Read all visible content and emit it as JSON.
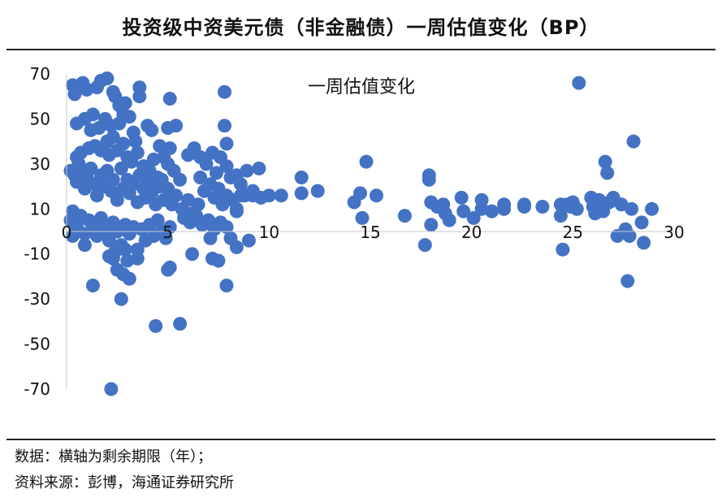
{
  "header": {
    "title": "投资级中资美元债（非金融债）一周估值变化（BP）"
  },
  "footer": {
    "note_line1": "数据：横轴为剩余期限（年）；",
    "note_line2": "资料来源：彭博，海通证券研究所"
  },
  "colors": {
    "marker": "#4472C4",
    "axis": "#c8c8c8",
    "text": "#111111"
  },
  "chart_data": {
    "type": "scatter",
    "title": "一周估值变化",
    "xlabel": "",
    "ylabel": "",
    "xlim": [
      0,
      30
    ],
    "ylim": [
      -70,
      70
    ],
    "x_ticks": [
      0,
      5,
      10,
      15,
      20,
      25,
      30
    ],
    "y_ticks": [
      70,
      50,
      30,
      10,
      -10,
      -30,
      -50,
      -70
    ],
    "grid": false,
    "legend": "none",
    "series": [
      {
        "points": [
          [
            0.3,
            65
          ],
          [
            0.4,
            61
          ],
          [
            0.8,
            66
          ],
          [
            1,
            63
          ],
          [
            1.5,
            64
          ],
          [
            1.7,
            67
          ],
          [
            2,
            68
          ],
          [
            2.3,
            62
          ],
          [
            2.4,
            60
          ],
          [
            2.6,
            56
          ],
          [
            2.9,
            57
          ],
          [
            3.6,
            64
          ],
          [
            3.6,
            60
          ],
          [
            5.1,
            59
          ],
          [
            7.8,
            62
          ],
          [
            7.8,
            47
          ],
          [
            7.9,
            39
          ],
          [
            0.5,
            48
          ],
          [
            0.9,
            50
          ],
          [
            1.2,
            45
          ],
          [
            1.3,
            52
          ],
          [
            1.6,
            46
          ],
          [
            1.9,
            50
          ],
          [
            2.2,
            47
          ],
          [
            2.6,
            48
          ],
          [
            2.8,
            52
          ],
          [
            3.1,
            51
          ],
          [
            3.3,
            44
          ],
          [
            3.4,
            40
          ],
          [
            4,
            47
          ],
          [
            4.2,
            45
          ],
          [
            4.6,
            38
          ],
          [
            5,
            46
          ],
          [
            5.4,
            47
          ],
          [
            5.1,
            37
          ],
          [
            4.8,
            33
          ],
          [
            0.5,
            33
          ],
          [
            0.7,
            35
          ],
          [
            1.1,
            37
          ],
          [
            1.4,
            38
          ],
          [
            1.7,
            36
          ],
          [
            2,
            40
          ],
          [
            2.1,
            34
          ],
          [
            2.3,
            42
          ],
          [
            2.5,
            36
          ],
          [
            2.8,
            39
          ],
          [
            3,
            33
          ],
          [
            3.2,
            31
          ],
          [
            3.5,
            35
          ],
          [
            3.8,
            29
          ],
          [
            4.1,
            27
          ],
          [
            4.3,
            32
          ],
          [
            4.5,
            24
          ],
          [
            4.7,
            23
          ],
          [
            5,
            30
          ],
          [
            5.3,
            27
          ],
          [
            5.6,
            23
          ],
          [
            0.2,
            27
          ],
          [
            0.4,
            25
          ],
          [
            0.5,
            22
          ],
          [
            0.6,
            30
          ],
          [
            0.8,
            27
          ],
          [
            0.9,
            19
          ],
          [
            1,
            24
          ],
          [
            1.2,
            28
          ],
          [
            1.4,
            21
          ],
          [
            1.5,
            16
          ],
          [
            1.7,
            25
          ],
          [
            1.8,
            20
          ],
          [
            2,
            27
          ],
          [
            2.2,
            18
          ],
          [
            2.3,
            23
          ],
          [
            2.5,
            14
          ],
          [
            2.7,
            28
          ],
          [
            2.8,
            19
          ],
          [
            3,
            23
          ],
          [
            3.1,
            17
          ],
          [
            3.3,
            21
          ],
          [
            3.5,
            13
          ],
          [
            3.6,
            25
          ],
          [
            3.8,
            19
          ],
          [
            3.9,
            15
          ],
          [
            4,
            22
          ],
          [
            4.2,
            17
          ],
          [
            4.4,
            12
          ],
          [
            4.6,
            20
          ],
          [
            4.8,
            14
          ],
          [
            5,
            19
          ],
          [
            5.2,
            12
          ],
          [
            5.4,
            16
          ],
          [
            5.7,
            10
          ],
          [
            6,
            14
          ],
          [
            6.2,
            8
          ],
          [
            6.5,
            12
          ],
          [
            6,
            34
          ],
          [
            6.3,
            37
          ],
          [
            6.6,
            33
          ],
          [
            6.9,
            30
          ],
          [
            7.2,
            35
          ],
          [
            7.4,
            26
          ],
          [
            7.6,
            33
          ],
          [
            7.9,
            29
          ],
          [
            8.1,
            24
          ],
          [
            8.4,
            25
          ],
          [
            8.6,
            21
          ],
          [
            8.9,
            27
          ],
          [
            9.2,
            18
          ],
          [
            9.5,
            28
          ],
          [
            6.6,
            24
          ],
          [
            6.8,
            18
          ],
          [
            7.1,
            21
          ],
          [
            7.3,
            15
          ],
          [
            7.5,
            19
          ],
          [
            7.7,
            12
          ],
          [
            7.9,
            16
          ],
          [
            8.2,
            14
          ],
          [
            8.4,
            10
          ],
          [
            8.6,
            16
          ],
          [
            8.8,
            16
          ],
          [
            9.2,
            16
          ],
          [
            9.6,
            15
          ],
          [
            5.8,
            6
          ],
          [
            6.1,
            4
          ],
          [
            6.4,
            7
          ],
          [
            6.7,
            3
          ],
          [
            7,
            5
          ],
          [
            7.3,
            1
          ],
          [
            7.6,
            4
          ],
          [
            7.9,
            2
          ],
          [
            8.1,
            -3
          ],
          [
            8.4,
            9
          ],
          [
            0.2,
            5
          ],
          [
            0.3,
            9
          ],
          [
            0.5,
            2
          ],
          [
            0.7,
            7
          ],
          [
            0.9,
            -1
          ],
          [
            1.1,
            5
          ],
          [
            1.3,
            3
          ],
          [
            1.5,
            -2
          ],
          [
            1.7,
            6
          ],
          [
            1.9,
            1
          ],
          [
            2.1,
            -4
          ],
          [
            2.3,
            4
          ],
          [
            2.5,
            0
          ],
          [
            2.7,
            -6
          ],
          [
            2.9,
            3
          ],
          [
            3.1,
            -1
          ],
          [
            3.3,
            2
          ],
          [
            3.5,
            -8
          ],
          [
            3.7,
            1
          ],
          [
            3.9,
            -4
          ],
          [
            4.1,
            3
          ],
          [
            4.3,
            -2
          ],
          [
            4.5,
            5
          ],
          [
            4.7,
            0
          ],
          [
            4.9,
            -3
          ],
          [
            5.1,
            2
          ],
          [
            0.3,
            -2
          ],
          [
            0.9,
            -6
          ],
          [
            1.3,
            -24
          ],
          [
            2.1,
            -11
          ],
          [
            2.3,
            -12
          ],
          [
            2.4,
            -9
          ],
          [
            2.5,
            -17
          ],
          [
            2.7,
            -30
          ],
          [
            2.8,
            -19
          ],
          [
            2.9,
            -8
          ],
          [
            3,
            -13
          ],
          [
            3.1,
            -21
          ],
          [
            3.5,
            -12
          ],
          [
            4.4,
            -42
          ],
          [
            5,
            -17
          ],
          [
            5.1,
            -16
          ],
          [
            5.6,
            -41
          ],
          [
            6.2,
            -10
          ],
          [
            7.1,
            -3
          ],
          [
            7.2,
            -12
          ],
          [
            7.5,
            -13
          ],
          [
            7.9,
            -24
          ],
          [
            8.4,
            -7
          ],
          [
            9,
            -4
          ],
          [
            2.2,
            -70
          ],
          [
            10,
            16
          ],
          [
            10.6,
            16
          ],
          [
            11.6,
            17
          ],
          [
            11.6,
            24
          ],
          [
            12.4,
            18
          ],
          [
            14.2,
            13
          ],
          [
            14.5,
            17
          ],
          [
            14.6,
            6
          ],
          [
            14.8,
            31
          ],
          [
            15.3,
            16
          ],
          [
            16.7,
            7
          ],
          [
            17.7,
            -6
          ],
          [
            17.9,
            25
          ],
          [
            17.9,
            23
          ],
          [
            18,
            3
          ],
          [
            18,
            13
          ],
          [
            18.3,
            11
          ],
          [
            18.6,
            12
          ],
          [
            18.7,
            8
          ],
          [
            18.9,
            5
          ],
          [
            19.5,
            15
          ],
          [
            19.6,
            9
          ],
          [
            20.1,
            6
          ],
          [
            20.5,
            14
          ],
          [
            20.5,
            10
          ],
          [
            21,
            9
          ],
          [
            21.6,
            12
          ],
          [
            21.6,
            10
          ],
          [
            22.6,
            12
          ],
          [
            22.6,
            11
          ],
          [
            23.5,
            11
          ],
          [
            24.4,
            12
          ],
          [
            24.4,
            7
          ],
          [
            24.5,
            -8
          ],
          [
            24.7,
            12
          ],
          [
            24.9,
            11
          ],
          [
            25,
            13
          ],
          [
            25.2,
            10
          ],
          [
            25.3,
            66
          ],
          [
            25.9,
            15
          ],
          [
            26,
            11
          ],
          [
            26.1,
            8
          ],
          [
            26.3,
            14
          ],
          [
            26.4,
            12
          ],
          [
            26.5,
            9
          ],
          [
            26.6,
            31
          ],
          [
            26.7,
            26
          ],
          [
            26.8,
            13
          ],
          [
            27,
            15
          ],
          [
            27.2,
            -2
          ],
          [
            27.4,
            12
          ],
          [
            27.6,
            1
          ],
          [
            27.7,
            -22
          ],
          [
            27.8,
            -2
          ],
          [
            27.9,
            10
          ],
          [
            28,
            40
          ],
          [
            28.4,
            4
          ],
          [
            28.5,
            -5
          ],
          [
            28.9,
            10
          ]
        ]
      }
    ]
  }
}
